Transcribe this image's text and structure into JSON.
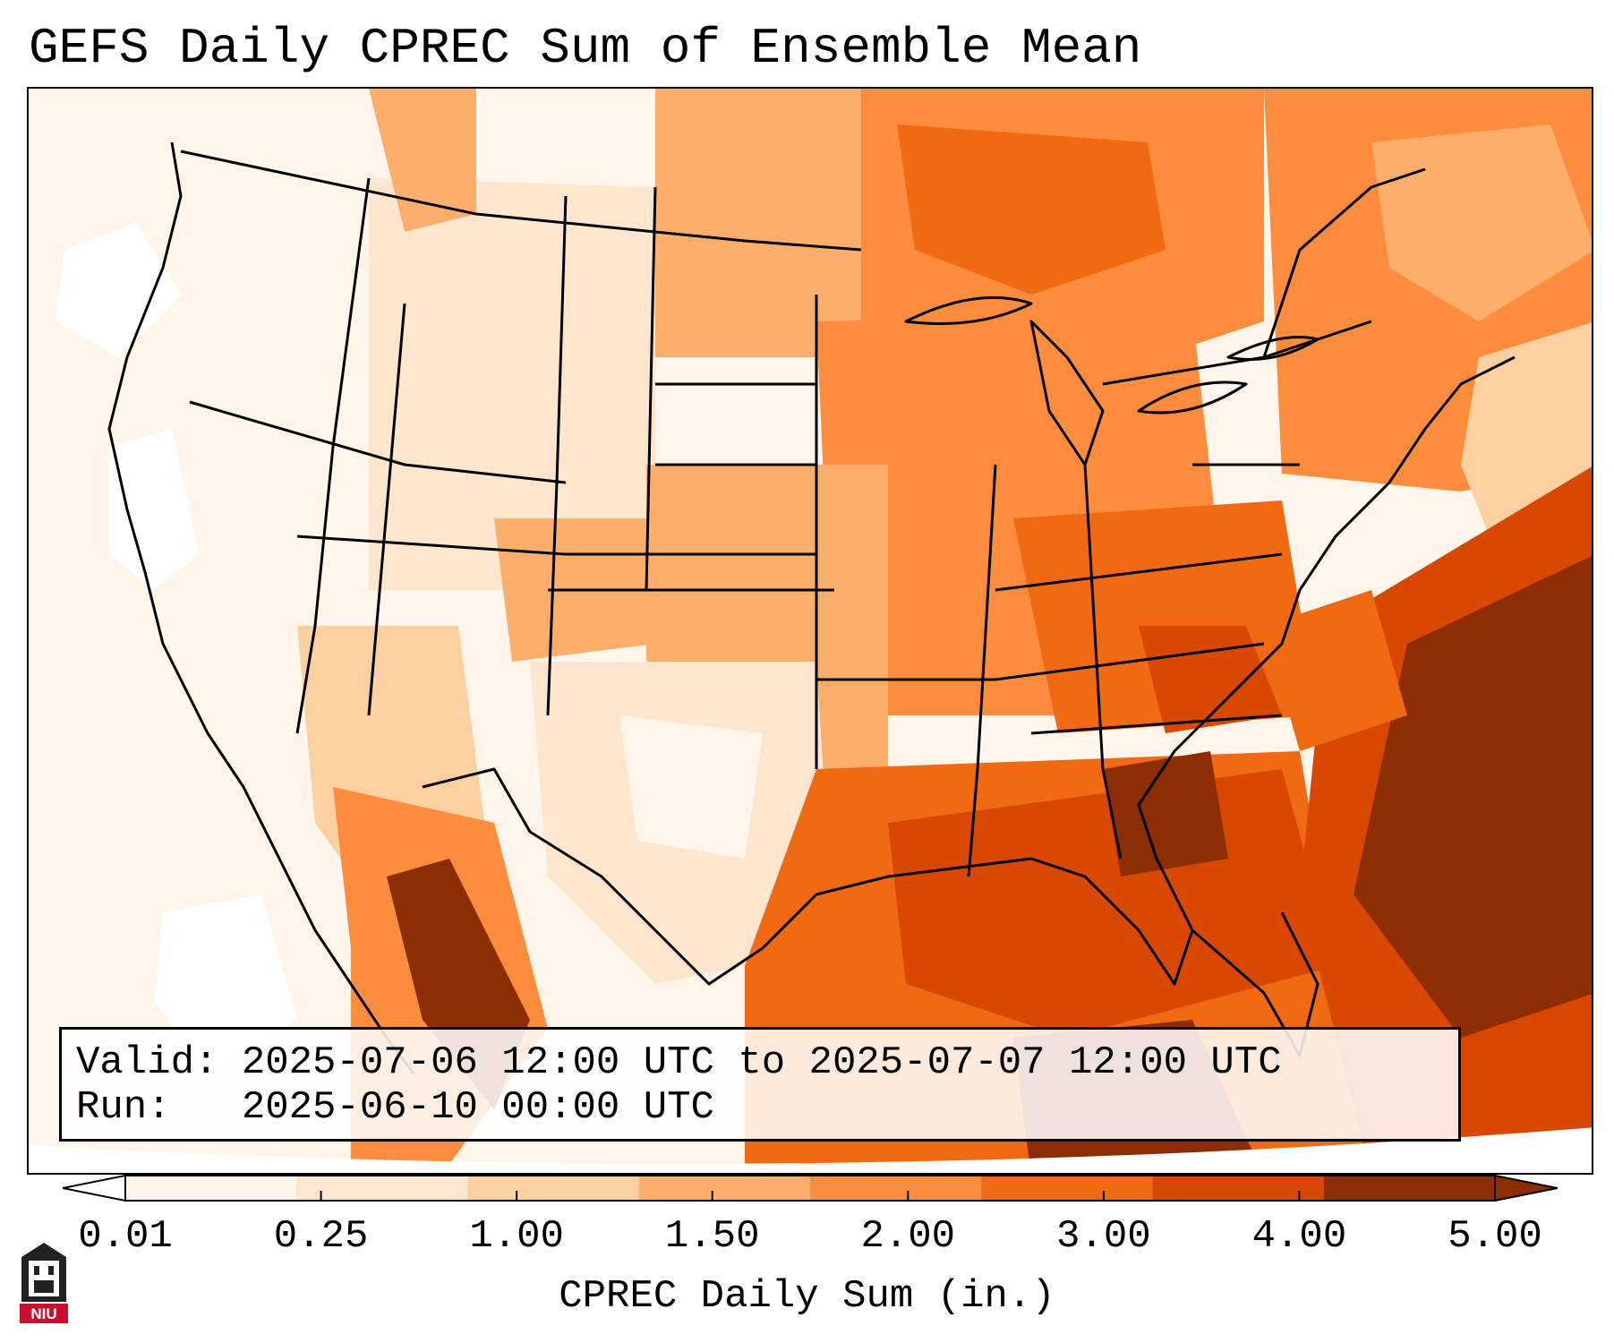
{
  "title": "GEFS Daily CPREC Sum of Ensemble Mean",
  "info": {
    "valid_label": "Valid:",
    "valid_text": "2025-07-06 12:00 UTC to 2025-07-07 12:00 UTC",
    "run_label": "Run:",
    "run_text": "2025-06-10 00:00 UTC"
  },
  "colorbar": {
    "label": "CPREC Daily Sum (in.)",
    "ticks": [
      "0.01",
      "0.25",
      "1.00",
      "1.50",
      "2.00",
      "3.00",
      "4.00",
      "5.00"
    ],
    "colors": [
      "#fff5eb",
      "#fee6ce",
      "#fdd0a2",
      "#fdae6b",
      "#fd8d3c",
      "#f16913",
      "#d94801",
      "#8c2d04"
    ],
    "extend": "both"
  },
  "logo": {
    "text": "NIU",
    "description": "Northern Illinois University logo"
  },
  "colors": {
    "bg": "#ffffff",
    "border": "#000000",
    "outline": "#000000"
  },
  "map": {
    "region": "Continental United States",
    "features": [
      "state-borders",
      "coastlines",
      "lakes",
      "precipitation-field"
    ]
  }
}
